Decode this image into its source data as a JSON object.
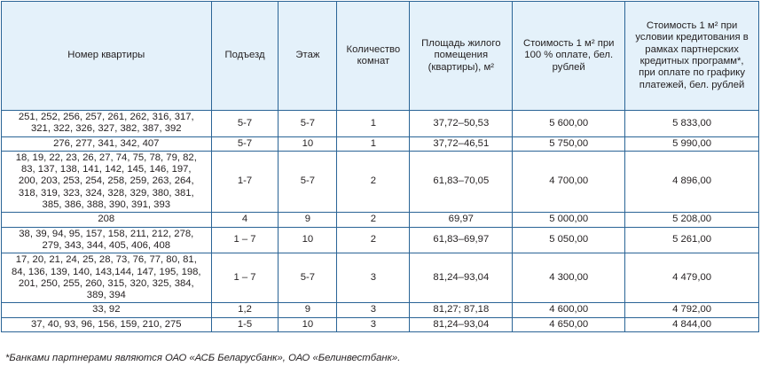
{
  "table": {
    "headers": [
      "Номер квартиры",
      "Подъезд",
      "Этаж",
      "Количество комнат",
      "Площадь жилого помещения (квартиры), м²",
      "Стоимость 1 м² при 100 % оплате, бел. рублей",
      "Стоимость 1 м² при условии кредитования в рамках партнерских кредитных программ*, при оплате по графику платежей, бел. рублей"
    ],
    "rows": [
      [
        "251, 252, 256, 257, 261, 262, 316, 317, 321, 322, 326, 327, 382, 387, 392",
        "5-7",
        "5-7",
        "1",
        "37,72–50,53",
        "5 600,00",
        "5 833,00"
      ],
      [
        "276, 277, 341, 342, 407",
        "5-7",
        "10",
        "1",
        "37,72–46,51",
        "5 750,00",
        "5 990,00"
      ],
      [
        "18, 19, 22, 23, 26, 27, 74, 75, 78, 79, 82, 83, 137, 138, 141, 142, 145, 146, 197, 200, 203, 253, 254, 258, 259, 263, 264, 318, 319, 323, 324, 328, 329, 380, 381, 385, 386, 388, 390, 391, 393",
        "1-7",
        "5-7",
        "2",
        "61,83–70,05",
        "4 700,00",
        "4 896,00"
      ],
      [
        "208",
        "4",
        "9",
        "2",
        "69,97",
        "5 000,00",
        "5 208,00"
      ],
      [
        "38, 39, 94, 95, 157, 158, 211, 212, 278, 279, 343, 344, 405, 406, 408",
        "1 – 7",
        "10",
        "2",
        "61,83–69,97",
        "5 050,00",
        "5 261,00"
      ],
      [
        "17, 20, 21, 24, 25, 28, 73, 76, 77, 80, 81, 84, 136, 139, 140, 143,144, 147, 195, 198, 201, 250, 255, 260, 315, 320, 325, 384, 389, 394",
        "1 – 7",
        "5-7",
        "3",
        "81,24–93,04",
        "4 300,00",
        "4 479,00"
      ],
      [
        "33, 92",
        "1,2",
        "9",
        "3",
        "81,27; 87,18",
        "4 600,00",
        "4 792,00"
      ],
      [
        "37, 40, 93, 96, 156, 159, 210, 275",
        "1-5",
        "10",
        "3",
        "81,24–93,04",
        "4 650,00",
        "4 844,00"
      ]
    ]
  },
  "footnote": "*Банками партнерами являются ОАО «АСБ Беларусбанк», ОАО «Белинвестбанк».",
  "colors": {
    "border": "#2a6496",
    "header_bg": "#e4f1fa"
  }
}
